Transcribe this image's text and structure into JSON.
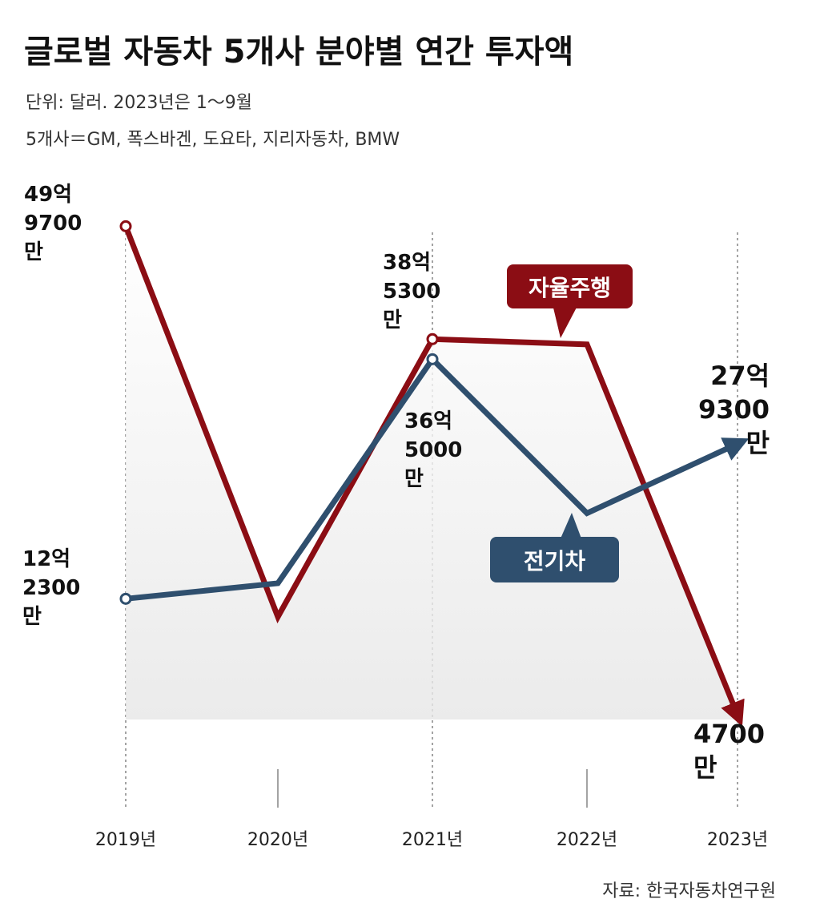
{
  "chart_data": {
    "type": "line",
    "title": "글로벌 자동차 5개사 분야별 연간 투자액",
    "subtitle": [
      "단위: 달러. 2023년은 1～9월",
      "5개사＝GM, 폭스바겐, 도요타, 지리자동차, BMW"
    ],
    "source": "자료: 한국자동차연구원",
    "categories": [
      "2019년",
      "2020년",
      "2021년",
      "2022년",
      "2023년"
    ],
    "ylim": [
      0,
      5000000000
    ],
    "series": [
      {
        "name": "자율주행",
        "color": "#8b0d14",
        "values": [
          4997000000,
          1040000000,
          3853000000,
          3800000000,
          47000000
        ],
        "value_labels": [
          "49억 9700만",
          null,
          "38억 5300만",
          null,
          "4700만"
        ]
      },
      {
        "name": "전기차",
        "color": "#2f4f6e",
        "values": [
          1223000000,
          1380000000,
          3650000000,
          2090000000,
          2793000000
        ],
        "value_labels": [
          "12억 2300만",
          null,
          "36억 5000만",
          null,
          "27억 9300만"
        ]
      }
    ]
  }
}
